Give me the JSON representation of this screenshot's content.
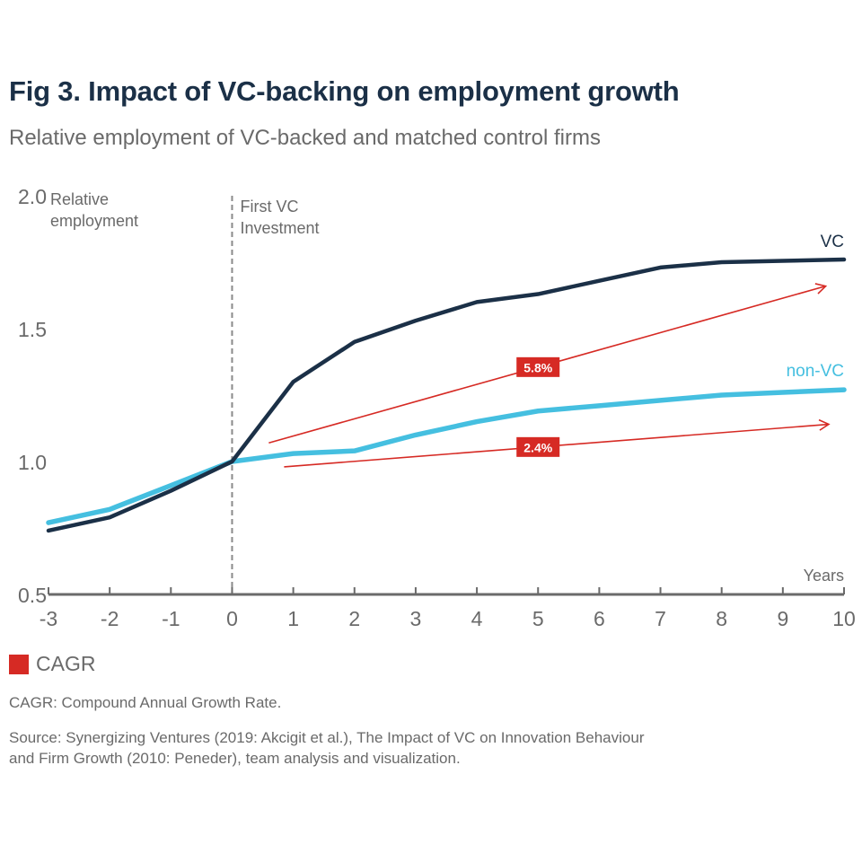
{
  "header": {
    "title": "Fig 3. Impact of VC-backing on employment growth",
    "subtitle": "Relative employment of VC-backed and matched control firms"
  },
  "colors": {
    "vc": "#1b3047",
    "non_vc": "#45bfe0",
    "cagr": "#d62a24",
    "axis": "#6a6a6a",
    "text": "#6a6a6a",
    "title": "#1b3047"
  },
  "chart_data": {
    "type": "line",
    "title": "Fig 3. Impact of VC-backing on employment growth",
    "subtitle": "Relative employment of VC-backed and matched control firms",
    "xlabel": "Years",
    "ylabel": "Relative employment",
    "x": [
      -3,
      -2,
      -1,
      0,
      1,
      2,
      3,
      4,
      5,
      6,
      7,
      8,
      9,
      10
    ],
    "xlim": [
      -3,
      10
    ],
    "ylim": [
      0.5,
      2.0
    ],
    "x_ticks": [
      "-3",
      "-2",
      "-1",
      "0",
      "1",
      "2",
      "3",
      "4",
      "5",
      "6",
      "7",
      "8",
      "9",
      "10"
    ],
    "y_ticks": [
      {
        "value": 2.0,
        "label": "2.0"
      },
      {
        "value": 1.5,
        "label": "1.5"
      },
      {
        "value": 1.0,
        "label": "1.0"
      },
      {
        "value": 0.5,
        "label": "0.5"
      }
    ],
    "grid": false,
    "series": [
      {
        "name": "VC",
        "values": [
          0.74,
          0.79,
          0.89,
          1.0,
          1.3,
          1.45,
          1.53,
          1.6,
          1.63,
          1.68,
          1.73,
          1.75,
          1.755,
          1.76
        ]
      },
      {
        "name": "non-VC",
        "values": [
          0.77,
          0.82,
          0.91,
          1.0,
          1.03,
          1.04,
          1.1,
          1.15,
          1.19,
          1.21,
          1.23,
          1.25,
          1.26,
          1.27
        ]
      }
    ],
    "annotations": {
      "event_line": {
        "x": 0,
        "label_line1": "First VC",
        "label_line2": "Investment"
      },
      "cagr_arrows": [
        {
          "label": "5.8%",
          "from": [
            0.6,
            1.07
          ],
          "to": [
            9.7,
            1.66
          ],
          "label_at_x": 5
        },
        {
          "label": "2.4%",
          "from": [
            0.85,
            0.98
          ],
          "to": [
            9.75,
            1.14
          ],
          "label_at_x": 5
        }
      ]
    },
    "legend": {
      "position": "bottom-left",
      "entries": [
        {
          "label": "CAGR",
          "color": "#d62a24"
        }
      ]
    }
  },
  "footer": {
    "legend_label": "CAGR",
    "note": "CAGR: Compound Annual Growth Rate.",
    "source_line1": "Source: Synergizing Ventures (2019: Akcigit et al.), The Impact of VC on Innovation Behaviour",
    "source_line2": "and Firm Growth (2010: Peneder), team analysis and visualization."
  }
}
